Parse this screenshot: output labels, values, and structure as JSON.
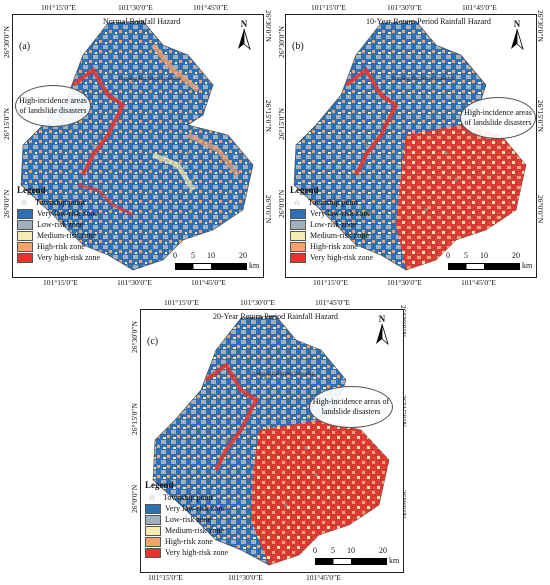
{
  "panels": [
    {
      "id": "a",
      "title": "Normal Rainfall Hazard",
      "label": "(a)",
      "top_lon": [
        "101°15′0″E",
        "101°30′0″E",
        "101°45′0″E"
      ],
      "bottom_lon": [
        "101°15′0″E",
        "101°30′0″E",
        "101°45′0″E"
      ],
      "left_lat": [
        "26°30′0″N",
        "26°15′0″N",
        "26°0′0″N"
      ],
      "right_lat": [
        "26°30′0″N",
        "26°15′0″N",
        "26°0′0″N"
      ],
      "callout": "High-incidence areas of landslide disasters",
      "towns": [
        "Yongxing Dai Ethnic Township"
      ]
    },
    {
      "id": "b",
      "title": "10-Year Return Period Rainfall Hazard",
      "label": "(b)",
      "top_lon": [
        "101°15′0″E",
        "101°30′0″E",
        "101°45′0″E"
      ],
      "bottom_lon": [
        "101°15′0″E",
        "101°30′0″E",
        "101°45′0″E"
      ],
      "left_lat": [
        "26°30′0″N",
        "26°15′0″N",
        "26°0′0″N"
      ],
      "right_lat": [
        "26°30′0″N",
        "26°15′0″N",
        "26°0′0″N"
      ],
      "callout": "High-incidence areas of landslide disasters",
      "towns": [
        "Yongxing Dai Ethnic Township"
      ]
    },
    {
      "id": "c",
      "title": "20-Year Return Period Rainfall Hazard",
      "label": "(c)",
      "top_lon": [
        "101°15′0″E",
        "101°30′0″E",
        "101°45′0″E"
      ],
      "bottom_lon": [
        "101°15′0″E",
        "101°30′0″E",
        "101°45′0″E"
      ],
      "left_lat": [
        "26°30′0″N",
        "26°15′0″N",
        "26°0′0″N"
      ],
      "right_lat": [
        "26°30′0″N",
        "26°15′0″N",
        "26°0′0″N"
      ],
      "callout": "High-incidence areas of landslide disasters",
      "towns": [
        "Yongxing Dai Ethnic Township"
      ]
    }
  ],
  "legend": {
    "title": "Legend",
    "township": "Township point",
    "zones": [
      {
        "label": "Very low-risk zone",
        "color": "#2f6fb3"
      },
      {
        "label": "Low-risk zone",
        "color": "#9fb0be"
      },
      {
        "label": "Medium-risk zone",
        "color": "#f6ecb0"
      },
      {
        "label": "High-risk zone",
        "color": "#f4a36a"
      },
      {
        "label": "Very high-risk zone",
        "color": "#e8342a"
      }
    ]
  },
  "scalebar": {
    "ticks": [
      "0",
      "5",
      "10",
      "20"
    ],
    "unit": "km"
  },
  "north": "N"
}
